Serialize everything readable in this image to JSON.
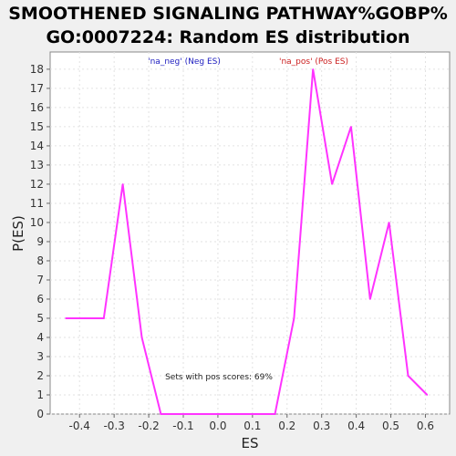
{
  "chart_data": {
    "type": "line",
    "title_lines": [
      "SMOOTHENED SIGNALING PATHWAY%GOBP%",
      "GO:0007224: Random ES distribution"
    ],
    "xlabel": "ES",
    "ylabel": "P(ES)",
    "xlim": [
      -0.485,
      0.67
    ],
    "ylim": [
      0,
      18.9
    ],
    "x_ticks": [
      -0.4,
      -0.3,
      -0.2,
      -0.1,
      0.0,
      0.1,
      0.2,
      0.3,
      0.4,
      0.5,
      0.6
    ],
    "x_tick_labels": [
      "-0.4",
      "-0.3",
      "-0.2",
      "-0.1",
      "0.0",
      "0.1",
      "0.2",
      "0.3",
      "0.4",
      "0.5",
      "0.6"
    ],
    "y_ticks": [
      0,
      1,
      2,
      3,
      4,
      5,
      6,
      7,
      8,
      9,
      10,
      11,
      12,
      13,
      14,
      15,
      16,
      17,
      18
    ],
    "y_tick_labels": [
      "0",
      "1",
      "2",
      "3",
      "4",
      "5",
      "6",
      "7",
      "8",
      "9",
      "10",
      "11",
      "12",
      "13",
      "14",
      "15",
      "16",
      "17",
      "18"
    ],
    "grid": true,
    "line_color": "#ff33ff",
    "series": [
      {
        "x": [
          -0.44,
          -0.385,
          -0.33,
          -0.275,
          -0.22,
          -0.165,
          -0.11,
          -0.055,
          0.0,
          0.055,
          0.11,
          0.165,
          0.22,
          0.275,
          0.33,
          0.385,
          0.44,
          0.495,
          0.55,
          0.605
        ],
        "values": [
          5,
          5,
          5,
          12,
          4,
          0,
          0,
          0,
          0,
          0,
          0,
          0,
          5,
          18,
          12,
          15,
          6,
          10,
          2,
          1
        ]
      }
    ],
    "legend": [
      {
        "label": "'na_neg' (Neg ES)",
        "color": "#2020c0"
      },
      {
        "label": "'na_pos' (Pos ES)",
        "color": "#cc2020"
      }
    ],
    "annotation": "Sets with pos scores: 69%"
  }
}
